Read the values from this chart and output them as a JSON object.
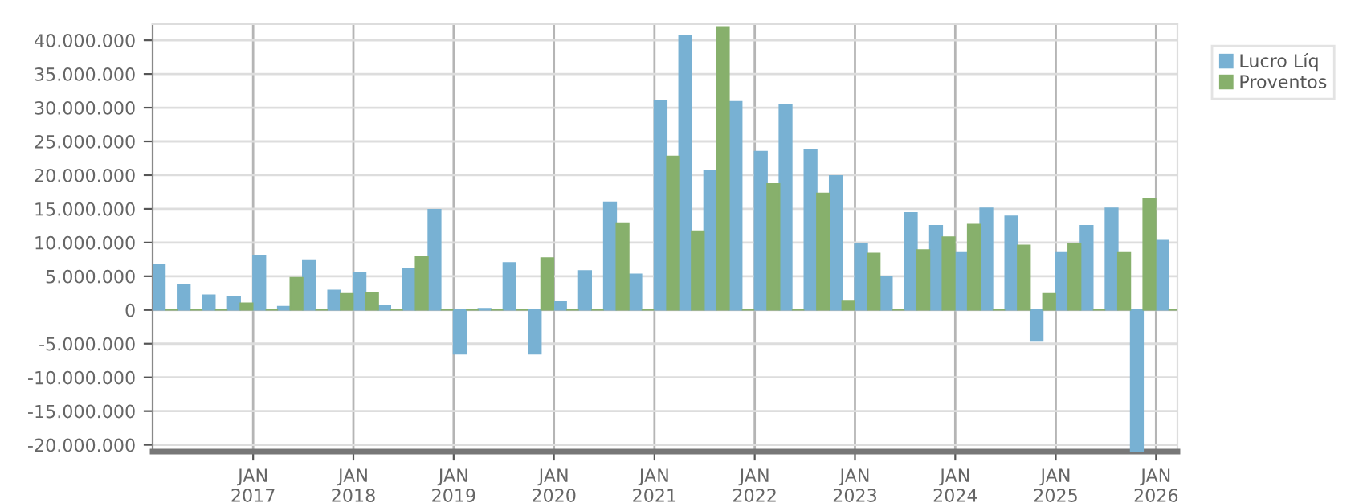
{
  "chart_data": {
    "type": "bar",
    "x": [
      "2016-02-15",
      "2016-05-16",
      "2016-08-15",
      "2016-11-15",
      "2017-02-15",
      "2017-05-16",
      "2017-08-15",
      "2017-11-15",
      "2018-02-15",
      "2018-05-16",
      "2018-08-15",
      "2018-11-15",
      "2019-02-15",
      "2019-05-16",
      "2019-08-15",
      "2019-11-15",
      "2020-02-15",
      "2020-05-16",
      "2020-08-15",
      "2020-11-15",
      "2021-02-15",
      "2021-05-16",
      "2021-08-15",
      "2021-11-15",
      "2022-02-15",
      "2022-05-16",
      "2022-08-15",
      "2022-11-15",
      "2023-02-15",
      "2023-05-16",
      "2023-08-15",
      "2023-11-15",
      "2024-02-15",
      "2024-05-16",
      "2024-08-15",
      "2024-11-15",
      "2025-02-15",
      "2025-05-16",
      "2025-08-15",
      "2025-11-15",
      "2026-02-15"
    ],
    "series": [
      {
        "name": "Lucro Líq",
        "color": "#78b1d3",
        "values": [
          6700000,
          3800000,
          2200000,
          1900000,
          8100000,
          500000,
          7400000,
          2900000,
          5500000,
          700000,
          6200000,
          14900000,
          -6500000,
          200000,
          7000000,
          -6500000,
          1200000,
          5800000,
          16000000,
          5300000,
          31100000,
          40700000,
          20600000,
          30900000,
          23500000,
          30400000,
          23700000,
          19900000,
          9800000,
          5000000,
          14400000,
          12500000,
          8600000,
          15100000,
          13900000,
          -4600000,
          8600000,
          12500000,
          15100000,
          -21000000,
          10300000
        ]
      },
      {
        "name": "Proventos",
        "color": "#87b06c",
        "values": [
          0,
          0,
          0,
          1000000,
          0,
          4800000,
          0,
          2400000,
          2600000,
          0,
          7900000,
          0,
          0,
          0,
          0,
          7700000,
          0,
          0,
          12900000,
          0,
          22800000,
          11700000,
          42000000,
          0,
          18700000,
          0,
          17300000,
          1400000,
          8400000,
          0,
          8900000,
          10800000,
          12700000,
          0,
          9600000,
          2400000,
          9800000,
          0,
          8600000,
          16500000,
          0
        ]
      }
    ],
    "xlim": [
      "2016-01-01",
      "2026-03-20"
    ],
    "xticks": [
      {
        "value": "2017-01",
        "label": "JAN\n2017"
      },
      {
        "value": "2018-01",
        "label": "JAN\n2018"
      },
      {
        "value": "2019-01",
        "label": "JAN\n2019"
      },
      {
        "value": "2020-01",
        "label": "JAN\n2020"
      },
      {
        "value": "2021-01",
        "label": "JAN\n2021"
      },
      {
        "value": "2022-01",
        "label": "JAN\n2022"
      },
      {
        "value": "2023-01",
        "label": "JAN\n2023"
      },
      {
        "value": "2024-01",
        "label": "JAN\n2024"
      },
      {
        "value": "2025-01",
        "label": "JAN\n2025"
      },
      {
        "value": "2026-01",
        "label": "JAN\n2026"
      }
    ],
    "ylim": [
      -21000000,
      42400000
    ],
    "yticks": [
      {
        "value": -20000000,
        "label": "-20.000.000"
      },
      {
        "value": -15000000,
        "label": "-15.000.000"
      },
      {
        "value": -10000000,
        "label": "-10.000.000"
      },
      {
        "value": -5000000,
        "label": "-5.000.000"
      },
      {
        "value": 0,
        "label": "0"
      },
      {
        "value": 5000000,
        "label": "5.000.000"
      },
      {
        "value": 10000000,
        "label": "10.000.000"
      },
      {
        "value": 15000000,
        "label": "15.000.000"
      },
      {
        "value": 20000000,
        "label": "20.000.000"
      },
      {
        "value": 25000000,
        "label": "25.000.000"
      },
      {
        "value": 30000000,
        "label": "30.000.000"
      },
      {
        "value": 35000000,
        "label": "35.000.000"
      },
      {
        "value": 40000000,
        "label": "40.000.000"
      }
    ],
    "grid": true,
    "legend": "top right"
  }
}
